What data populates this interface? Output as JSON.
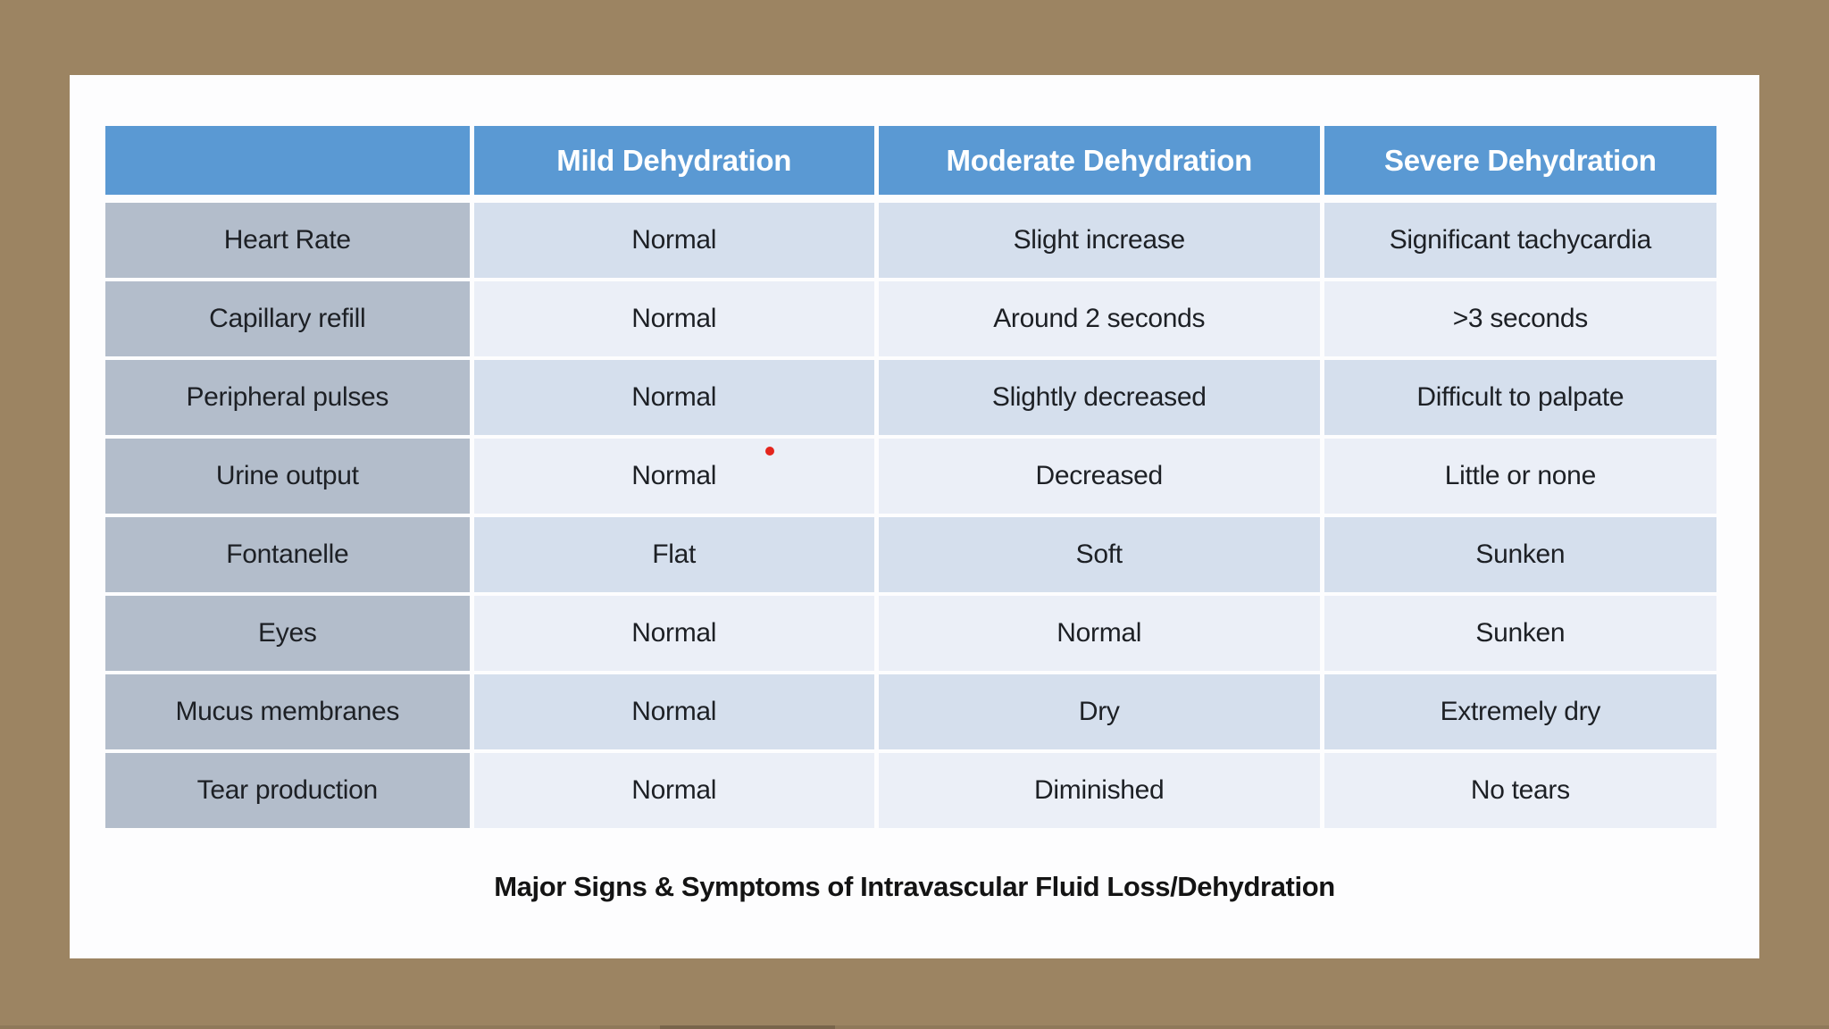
{
  "colors": {
    "bg-brown": "#9c8462",
    "slide-bg": "#fdfdfe",
    "header-blue": "#5a99d3",
    "header-text": "#ffffff",
    "label-bg": "#b3bdcb",
    "row-odd": "#d5dfed",
    "row-even": "#ebeff7",
    "text-dark": "#1d2025",
    "caption-text": "#141414",
    "pointer-red": "#e4251d"
  },
  "slide": {
    "caption": "Major Signs & Symptoms of Intravascular Fluid Loss/Dehydration"
  },
  "table": {
    "corner_label": "",
    "columns": [
      "Mild Dehydration",
      "Moderate Dehydration",
      "Severe Dehydration"
    ],
    "rows": [
      {
        "label": "Heart Rate",
        "cells": [
          "Normal",
          "Slight increase",
          "Significant tachycardia"
        ]
      },
      {
        "label": "Capillary refill",
        "cells": [
          "Normal",
          "Around 2 seconds",
          ">3 seconds"
        ]
      },
      {
        "label": "Peripheral pulses",
        "cells": [
          "Normal",
          "Slightly decreased",
          "Difficult to palpate"
        ]
      },
      {
        "label": "Urine output",
        "cells": [
          "Normal",
          "Decreased",
          "Little or none"
        ]
      },
      {
        "label": "Fontanelle",
        "cells": [
          "Flat",
          "Soft",
          "Sunken"
        ]
      },
      {
        "label": "Eyes",
        "cells": [
          "Normal",
          "Normal",
          "Sunken"
        ]
      },
      {
        "label": "Mucus membranes",
        "cells": [
          "Normal",
          "Dry",
          "Extremely dry"
        ]
      },
      {
        "label": "Tear production",
        "cells": [
          "Normal",
          "Diminished",
          "No tears"
        ]
      }
    ]
  }
}
